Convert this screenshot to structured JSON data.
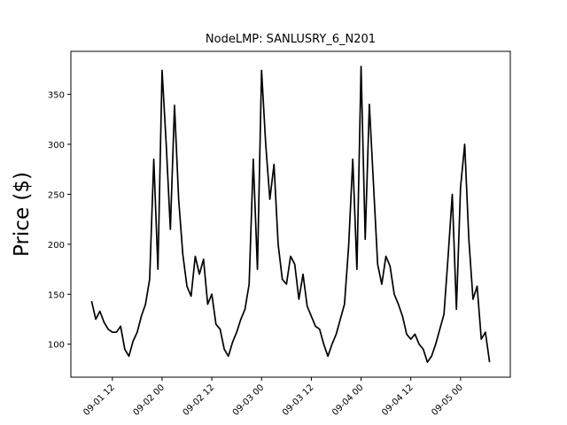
{
  "chart_data": {
    "type": "line",
    "title": "NodeLMP: SANLUSRY_6_N201",
    "ylabel": "Price ($)",
    "color": "#000000",
    "x": [
      "09-01 07",
      "09-01 08",
      "09-01 09",
      "09-01 10",
      "09-01 11",
      "09-01 12",
      "09-01 13",
      "09-01 14",
      "09-01 15",
      "09-01 16",
      "09-01 17",
      "09-01 18",
      "09-01 19",
      "09-01 20",
      "09-01 21",
      "09-01 22",
      "09-01 23",
      "09-02 00",
      "09-02 01",
      "09-02 02",
      "09-02 03",
      "09-02 04",
      "09-02 05",
      "09-02 06",
      "09-02 07",
      "09-02 08",
      "09-02 09",
      "09-02 10",
      "09-02 11",
      "09-02 12",
      "09-02 13",
      "09-02 14",
      "09-02 15",
      "09-02 16",
      "09-02 17",
      "09-02 18",
      "09-02 19",
      "09-02 20",
      "09-02 21",
      "09-02 22",
      "09-02 23",
      "09-03 00",
      "09-03 01",
      "09-03 02",
      "09-03 03",
      "09-03 04",
      "09-03 05",
      "09-03 06",
      "09-03 07",
      "09-03 08",
      "09-03 09",
      "09-03 10",
      "09-03 11",
      "09-03 12",
      "09-03 13",
      "09-03 14",
      "09-03 15",
      "09-03 16",
      "09-03 17",
      "09-03 18",
      "09-03 19",
      "09-03 20",
      "09-03 21",
      "09-03 22",
      "09-03 23",
      "09-04 00",
      "09-04 01",
      "09-04 02",
      "09-04 03",
      "09-04 04",
      "09-04 05",
      "09-04 06",
      "09-04 07",
      "09-04 08",
      "09-04 09",
      "09-04 10",
      "09-04 11",
      "09-04 12",
      "09-04 13",
      "09-04 14",
      "09-04 15",
      "09-04 16",
      "09-04 17",
      "09-04 18",
      "09-04 19",
      "09-04 20",
      "09-04 21",
      "09-04 22",
      "09-04 23",
      "09-05 00",
      "09-05 01",
      "09-05 02",
      "09-05 03",
      "09-05 04",
      "09-05 05",
      "09-05 06",
      "09-05 07"
    ],
    "values": [
      143,
      125,
      133,
      122,
      115,
      112,
      112,
      118,
      95,
      88,
      103,
      112,
      128,
      140,
      165,
      285,
      175,
      374,
      300,
      215,
      339,
      245,
      190,
      158,
      148,
      188,
      170,
      185,
      140,
      150,
      120,
      115,
      95,
      88,
      102,
      112,
      125,
      135,
      160,
      285,
      175,
      374,
      300,
      245,
      280,
      200,
      165,
      160,
      188,
      180,
      145,
      170,
      138,
      128,
      118,
      115,
      100,
      88,
      100,
      110,
      125,
      140,
      198,
      285,
      175,
      378,
      205,
      340,
      260,
      180,
      160,
      188,
      178,
      150,
      140,
      128,
      110,
      105,
      110,
      100,
      95,
      82,
      88,
      100,
      115,
      130,
      188,
      250,
      135,
      257,
      300,
      205,
      145,
      158,
      105,
      112,
      82
    ],
    "xlim": [
      "09-01 02",
      "09-05 12"
    ],
    "xticks": [
      "09-01 12",
      "09-02 00",
      "09-02 12",
      "09-03 00",
      "09-03 12",
      "09-04 00",
      "09-04 12",
      "09-05 00"
    ],
    "ylim": [
      67,
      393
    ],
    "yticks": [
      100,
      150,
      200,
      250,
      300,
      350
    ]
  }
}
